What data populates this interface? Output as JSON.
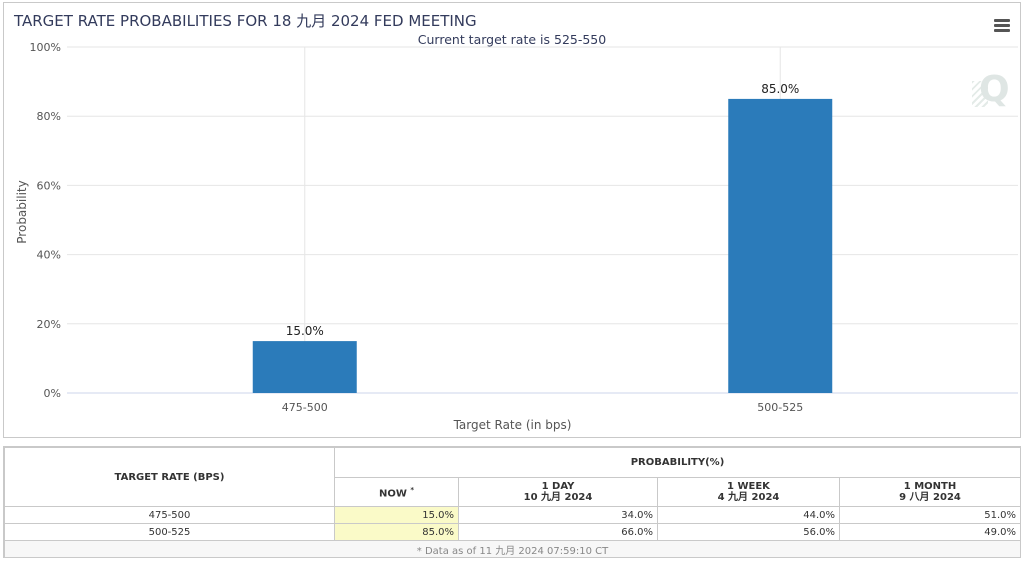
{
  "title": "TARGET RATE PROBABILITIES FOR 18 九月 2024 FED MEETING",
  "subtitle": "Current target rate is 525-550",
  "menu_icon": "hamburger-menu-icon",
  "watermark": "Q",
  "chart_data": {
    "type": "bar",
    "categories": [
      "475-500",
      "500-525"
    ],
    "values": [
      15.0,
      85.0
    ],
    "data_labels": [
      "15.0%",
      "85.0%"
    ],
    "xlabel": "Target Rate (in bps)",
    "ylabel": "Probability",
    "ylim": [
      0,
      100
    ],
    "yticks": [
      "0%",
      "20%",
      "40%",
      "60%",
      "80%",
      "100%"
    ],
    "bar_color": "#2b7bba",
    "grid": true
  },
  "table": {
    "target_header": "TARGET RATE (BPS)",
    "probability_header": "PROBABILITY(%)",
    "columns": [
      {
        "label": "NOW",
        "marker": "*",
        "date": ""
      },
      {
        "label": "1 DAY",
        "date": "10 九月 2024"
      },
      {
        "label": "1 WEEK",
        "date": "4 九月 2024"
      },
      {
        "label": "1 MONTH",
        "date": "9 八月 2024"
      }
    ],
    "rows": [
      {
        "rate": "475-500",
        "values": [
          "15.0%",
          "34.0%",
          "44.0%",
          "51.0%"
        ]
      },
      {
        "rate": "500-525",
        "values": [
          "85.0%",
          "66.0%",
          "56.0%",
          "49.0%"
        ]
      }
    ],
    "footnote": "* Data as of 11 九月 2024 07:59:10 CT",
    "now_highlight_color": "#fafac8"
  }
}
